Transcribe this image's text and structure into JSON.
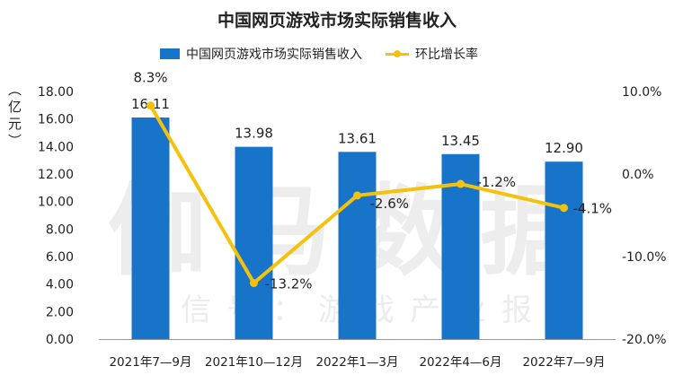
{
  "colors": {
    "bar": "#1874c8",
    "line": "#f4c20d",
    "axis": "#999999"
  },
  "watermark": {
    "main": "伽马数据",
    "sub": "微信号：游戏产业报告"
  },
  "chart_data": {
    "type": "bar",
    "title": "中国网页游戏市场实际销售收入",
    "ylabel": "（亿元）",
    "categories": [
      "2021年7—9月",
      "2021年10—12月",
      "2022年1—3月",
      "2022年4—6月",
      "2022年7—9月"
    ],
    "series": [
      {
        "name": "中国网页游戏市场实际销售收入",
        "type": "bar",
        "axis": "left",
        "values": [
          16.11,
          13.98,
          13.61,
          13.45,
          12.9
        ],
        "labels": [
          "16.11",
          "13.98",
          "13.61",
          "13.45",
          "12.90"
        ]
      },
      {
        "name": "环比增长率",
        "type": "line",
        "axis": "right",
        "values": [
          8.3,
          -13.2,
          -2.6,
          -1.2,
          -4.1
        ],
        "labels": [
          "8.3%",
          "-13.2%",
          "-2.6%",
          "-1.2%",
          "-4.1%"
        ]
      }
    ],
    "ylim_left": [
      0,
      18
    ],
    "yticks_left": [
      "0.00",
      "2.00",
      "4.00",
      "6.00",
      "8.00",
      "10.00",
      "12.00",
      "14.00",
      "16.00",
      "18.00"
    ],
    "ylim_right": [
      -20,
      10
    ],
    "yticks_right": [
      "-20.0%",
      "-10.0%",
      "0.0%",
      "10.0%"
    ],
    "grid": false,
    "legend": "top"
  }
}
